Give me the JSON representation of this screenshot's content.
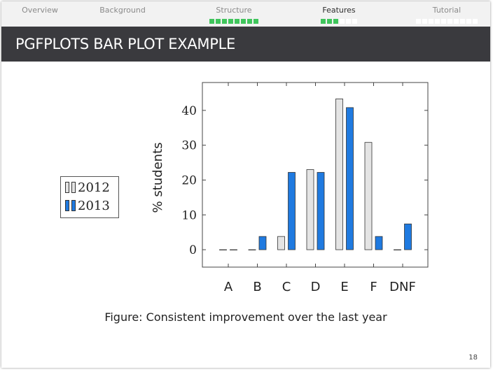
{
  "nav": {
    "sections": [
      {
        "title": "Overview",
        "dots_total": 0,
        "dots_filled": 0,
        "active": false
      },
      {
        "title": "Background",
        "dots_total": 0,
        "dots_filled": 0,
        "active": false
      },
      {
        "title": "Structure",
        "dots_total": 8,
        "dots_filled": 8,
        "active": false
      },
      {
        "title": "Features",
        "dots_total": 6,
        "dots_filled": 3,
        "active": true
      },
      {
        "title": "Tutorial",
        "dots_total": 10,
        "dots_filled": 0,
        "active": false
      }
    ]
  },
  "slide": {
    "title": "PGFPLOTS BAR PLOT EXAMPLE",
    "caption_label": "Figure:",
    "caption_text": "Consistent improvement over the last year",
    "page_number": "18"
  },
  "colors": {
    "series_2012": "#e4e4e4",
    "series_2013": "#1f7ae0",
    "nav_dot": "#3fc55c",
    "titlebar": "#3a3a3e"
  },
  "chart_data": {
    "type": "bar",
    "categories": [
      "A",
      "B",
      "C",
      "D",
      "E",
      "F",
      "DNF"
    ],
    "series": [
      {
        "name": "2012",
        "values": [
          0,
          0,
          3.8,
          23,
          43.3,
          30.8,
          0
        ]
      },
      {
        "name": "2013",
        "values": [
          0,
          3.8,
          22.2,
          22.2,
          40.8,
          3.8,
          7.4
        ]
      }
    ],
    "ylabel": "% students",
    "xlabel": "",
    "ylim": [
      -5,
      48
    ],
    "yticks": [
      0,
      10,
      20,
      30,
      40
    ],
    "legend_position": "left-outside",
    "grid": false
  }
}
